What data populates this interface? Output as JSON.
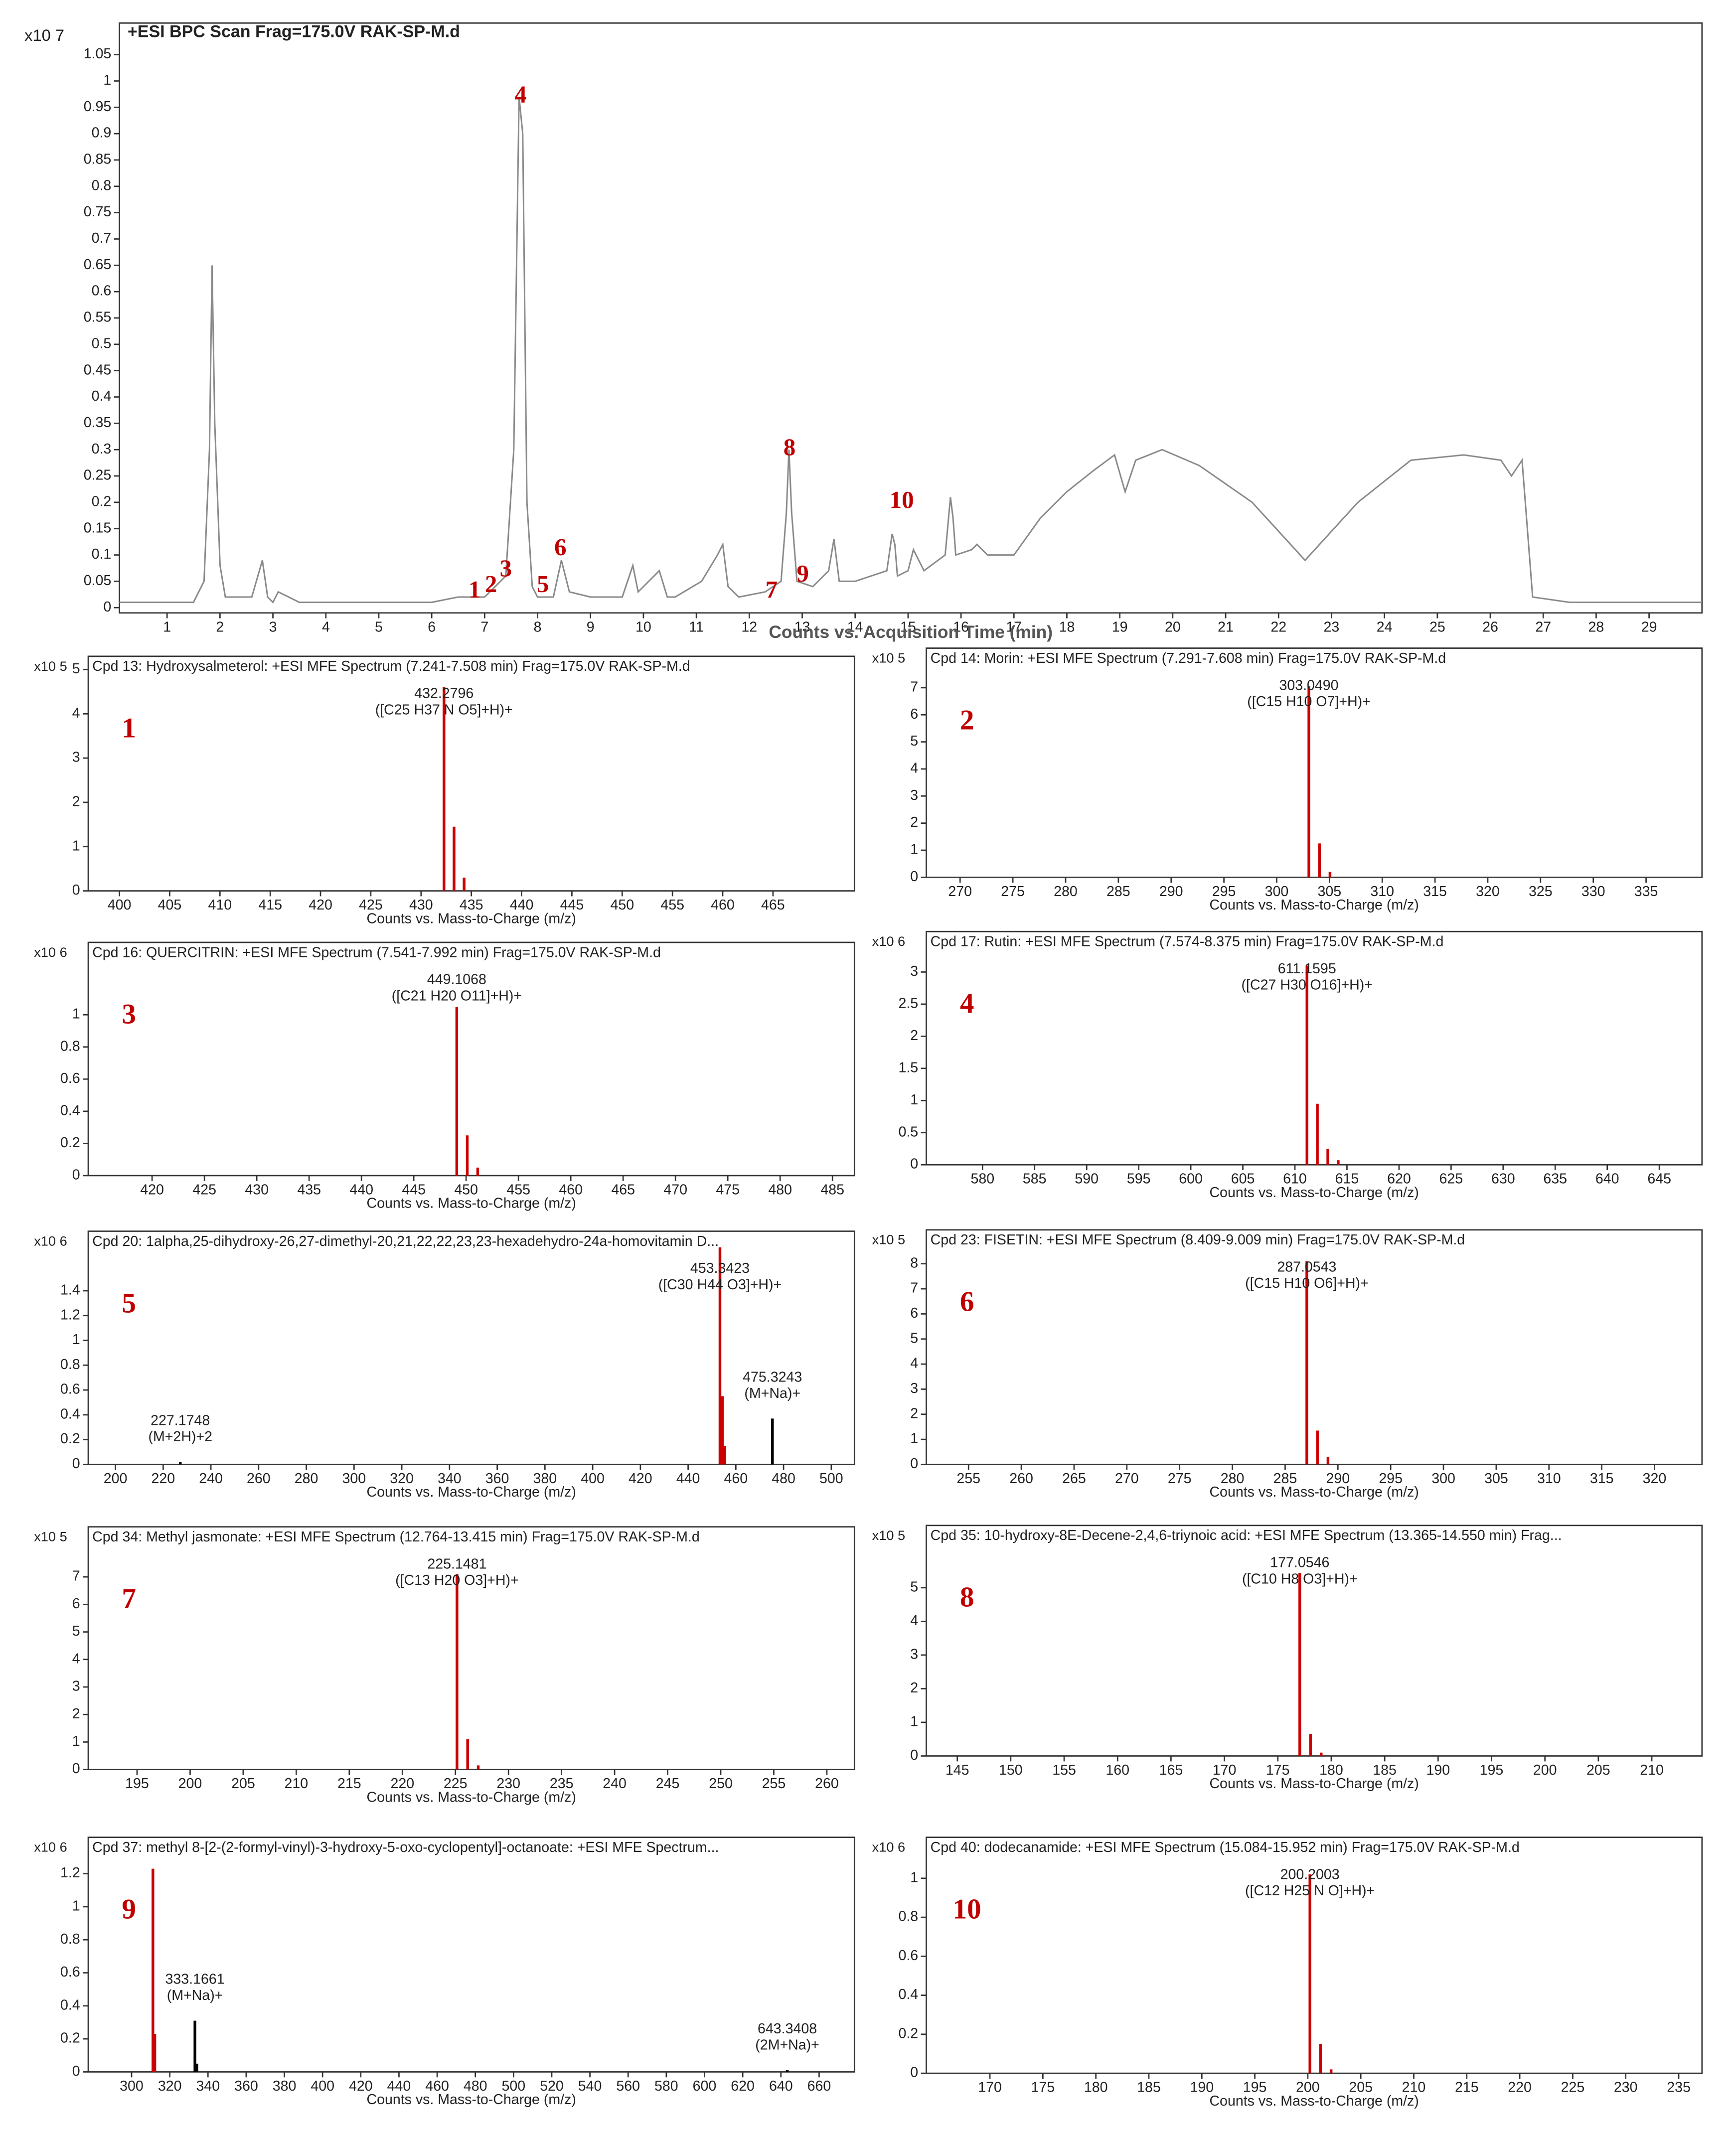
{
  "chart_data": [
    {
      "type": "line",
      "title": "+ESI BPC Scan Frag=175.0V RAK-SP-M.d",
      "y_multiplier": "x10 7",
      "xlabel": "Counts vs. Acquisition Time (min)",
      "color": "#8a8a8a",
      "x": [
        0.1,
        1.5,
        1.7,
        1.8,
        1.85,
        1.9,
        2.0,
        2.1,
        2.6,
        2.8,
        2.9,
        3.0,
        3.1,
        3.5,
        6.0,
        6.5,
        7.0,
        7.2,
        7.4,
        7.55,
        7.65,
        7.72,
        7.8,
        7.9,
        8.0,
        8.3,
        8.45,
        8.6,
        9.0,
        9.6,
        9.8,
        9.9,
        10.3,
        10.45,
        10.6,
        11.1,
        11.4,
        11.5,
        11.6,
        11.8,
        12.3,
        12.6,
        12.7,
        12.75,
        12.8,
        12.9,
        13.2,
        13.5,
        13.6,
        13.7,
        14.0,
        14.6,
        14.7,
        14.75,
        14.8,
        15.0,
        15.1,
        15.3,
        15.7,
        15.8,
        15.85,
        15.9,
        16.2,
        16.3,
        16.5,
        17.0,
        17.5,
        18.0,
        18.5,
        18.9,
        19.1,
        19.3,
        19.8,
        20.5,
        21.5,
        22.5,
        23.5,
        24.5,
        25.5,
        26.2,
        26.4,
        26.6,
        26.8,
        27.5,
        29.0,
        30.0
      ],
      "values": [
        0.01,
        0.01,
        0.05,
        0.3,
        0.65,
        0.35,
        0.08,
        0.02,
        0.02,
        0.09,
        0.02,
        0.01,
        0.03,
        0.01,
        0.01,
        0.02,
        0.02,
        0.04,
        0.06,
        0.3,
        0.97,
        0.9,
        0.2,
        0.04,
        0.02,
        0.02,
        0.09,
        0.03,
        0.02,
        0.02,
        0.08,
        0.03,
        0.07,
        0.02,
        0.02,
        0.05,
        0.1,
        0.12,
        0.04,
        0.02,
        0.03,
        0.05,
        0.18,
        0.3,
        0.18,
        0.05,
        0.04,
        0.07,
        0.13,
        0.05,
        0.05,
        0.07,
        0.14,
        0.12,
        0.06,
        0.07,
        0.11,
        0.07,
        0.1,
        0.21,
        0.17,
        0.1,
        0.11,
        0.12,
        0.1,
        0.1,
        0.17,
        0.22,
        0.26,
        0.29,
        0.22,
        0.28,
        0.3,
        0.27,
        0.2,
        0.09,
        0.2,
        0.28,
        0.29,
        0.28,
        0.25,
        0.28,
        0.02,
        0.01,
        0.01,
        0.01
      ],
      "xlim": [
        0.1,
        30
      ],
      "ylim": [
        -0.01,
        1.11
      ],
      "xticks": [
        1,
        2,
        3,
        4,
        5,
        6,
        7,
        8,
        9,
        10,
        11,
        12,
        13,
        14,
        15,
        16,
        17,
        18,
        19,
        20,
        21,
        22,
        23,
        24,
        25,
        26,
        27,
        28,
        29
      ],
      "yticks": [
        0,
        0.05,
        0.1,
        0.15,
        0.2,
        0.25,
        0.3,
        0.35,
        0.4,
        0.45,
        0.5,
        0.55,
        0.6,
        0.65,
        0.7,
        0.75,
        0.8,
        0.85,
        0.9,
        0.95,
        1,
        1.05
      ],
      "annotations": [
        {
          "text": "1",
          "x": 6.81,
          "y": 0.03
        },
        {
          "text": "2",
          "x": 7.12,
          "y": 0.04
        },
        {
          "text": "3",
          "x": 7.4,
          "y": 0.07
        },
        {
          "text": "4",
          "x": 7.68,
          "y": 0.97
        },
        {
          "text": "5",
          "x": 8.1,
          "y": 0.04
        },
        {
          "text": "6",
          "x": 8.43,
          "y": 0.11
        },
        {
          "text": "7",
          "x": 12.42,
          "y": 0.03
        },
        {
          "text": "8",
          "x": 12.76,
          "y": 0.3
        },
        {
          "text": "9",
          "x": 13.01,
          "y": 0.06
        },
        {
          "text": "10",
          "x": 14.88,
          "y": 0.2
        }
      ]
    },
    {
      "type": "stem",
      "tag": "1",
      "title": "Cpd 13: Hydroxysalmeterol: +ESI MFE Spectrum (7.241-7.508 min) Frag=175.0V RAK-SP-M.d",
      "y_multiplier": "x10 5",
      "xlabel": "Counts vs. Mass-to-Charge (m/z)",
      "x": [
        432.2796,
        433.28,
        434.28
      ],
      "values": [
        4.6,
        1.45,
        0.3
      ],
      "colors": [
        "#cc0000",
        "#cc0000",
        "#cc0000"
      ],
      "x_labels": [
        "432.2796",
        null,
        null
      ],
      "formula_labels": [
        "([C25 H37 N O5]+H)+",
        null,
        null
      ],
      "xlim": [
        396.9,
        473.1
      ],
      "ylim": [
        0,
        5.3
      ],
      "xticks": [
        400,
        405,
        410,
        415,
        420,
        425,
        430,
        435,
        440,
        445,
        450,
        455,
        460,
        465
      ],
      "yticks": [
        0,
        1,
        2,
        3,
        4,
        5
      ]
    },
    {
      "type": "stem",
      "tag": "2",
      "title": "Cpd 14: Morin: +ESI MFE Spectrum (7.291-7.608 min) Frag=175.0V RAK-SP-M.d",
      "y_multiplier": "x10 5",
      "xlabel": "Counts vs. Mass-to-Charge (m/z)",
      "x": [
        303.049,
        304.05,
        305.05
      ],
      "values": [
        7.05,
        1.25,
        0.2
      ],
      "colors": [
        "#cc0000",
        "#cc0000",
        "#cc0000"
      ],
      "x_labels": [
        "303.0490",
        null,
        null
      ],
      "formula_labels": [
        "([C15 H10 O7]+H)+",
        null,
        null
      ],
      "xlim": [
        266.8,
        340.3
      ],
      "ylim": [
        0,
        8.46
      ],
      "xticks": [
        270,
        275,
        280,
        285,
        290,
        295,
        300,
        305,
        310,
        315,
        320,
        325,
        330,
        335
      ],
      "yticks": [
        0,
        1,
        2,
        3,
        4,
        5,
        6,
        7
      ]
    },
    {
      "type": "stem",
      "tag": "3",
      "title": "Cpd 16: QUERCITRIN: +ESI MFE Spectrum (7.541-7.992 min) Frag=175.0V RAK-SP-M.d",
      "y_multiplier": "x10 6",
      "xlabel": "Counts vs. Mass-to-Charge (m/z)",
      "x": [
        449.1068,
        450.11,
        451.11
      ],
      "values": [
        1.05,
        0.25,
        0.05
      ],
      "colors": [
        "#cc0000",
        "#cc0000",
        "#cc0000"
      ],
      "x_labels": [
        "449.1068",
        null,
        null
      ],
      "formula_labels": [
        "([C21 H20 O11]+H)+",
        null,
        null
      ],
      "xlim": [
        413.9,
        487.1
      ],
      "ylim": [
        0,
        1.45
      ],
      "xticks": [
        420,
        425,
        430,
        435,
        440,
        445,
        450,
        455,
        460,
        465,
        470,
        475,
        480,
        485
      ],
      "yticks": [
        0,
        0.2,
        0.4,
        0.6,
        0.8,
        1
      ]
    },
    {
      "type": "stem",
      "tag": "4",
      "title": "Cpd 17: Rutin: +ESI MFE Spectrum (7.574-8.375 min) Frag=175.0V RAK-SP-M.d",
      "y_multiplier": "x10 6",
      "xlabel": "Counts vs. Mass-to-Charge (m/z)",
      "x": [
        611.1595,
        612.16,
        613.16,
        614.16
      ],
      "values": [
        3.1,
        0.95,
        0.25,
        0.07
      ],
      "colors": [
        "#cc0000",
        "#cc0000",
        "#cc0000",
        "#cc0000"
      ],
      "x_labels": [
        "611.1595",
        null,
        null,
        null
      ],
      "formula_labels": [
        "([C27 H30 O16]+H)+",
        null,
        null,
        null
      ],
      "xlim": [
        574.6,
        649.1
      ],
      "ylim": [
        0,
        3.63
      ],
      "xticks": [
        580,
        585,
        590,
        595,
        600,
        605,
        610,
        615,
        620,
        625,
        630,
        635,
        640,
        645
      ],
      "yticks": [
        0,
        0.5,
        1,
        1.5,
        2,
        2.5,
        3
      ]
    },
    {
      "type": "stem",
      "tag": "5",
      "title": "Cpd 20: 1alpha,25-dihydroxy-26,27-dimethyl-20,21,22,22,23,23-hexadehydro-24a-homovitamin D...",
      "y_multiplier": "x10 6",
      "xlabel": "Counts vs. Mass-to-Charge (m/z)",
      "x": [
        227.1748,
        453.3423,
        454.35,
        455.35,
        475.3243
      ],
      "values": [
        0.02,
        1.75,
        0.55,
        0.15,
        0.37
      ],
      "colors": [
        "#000000",
        "#cc0000",
        "#cc0000",
        "#cc0000",
        "#000000"
      ],
      "x_labels": [
        "227.1748",
        "453.3423",
        null,
        null,
        "475.3243"
      ],
      "formula_labels": [
        "(M+2H)+2",
        "([C30 H44 O3]+H)+",
        null,
        null,
        "(M+Na)+"
      ],
      "xlim": [
        188.6,
        509.7
      ],
      "ylim": [
        0,
        1.88
      ],
      "xticks": [
        200,
        220,
        240,
        260,
        280,
        300,
        320,
        340,
        360,
        380,
        400,
        420,
        440,
        460,
        480,
        500
      ],
      "yticks": [
        0,
        0.2,
        0.4,
        0.6,
        0.8,
        1,
        1.2,
        1.4
      ]
    },
    {
      "type": "stem",
      "tag": "6",
      "title": "Cpd 23: FISETIN: +ESI MFE Spectrum (8.409-9.009 min) Frag=175.0V RAK-SP-M.d",
      "y_multiplier": "x10 5",
      "xlabel": "Counts vs. Mass-to-Charge (m/z)",
      "x": [
        287.0543,
        288.06,
        289.06
      ],
      "values": [
        8.1,
        1.35,
        0.3
      ],
      "colors": [
        "#cc0000",
        "#cc0000",
        "#cc0000"
      ],
      "x_labels": [
        "287.0543",
        null,
        null
      ],
      "formula_labels": [
        "([C15 H10 O6]+H)+",
        null,
        null
      ],
      "xlim": [
        251,
        324.5
      ],
      "ylim": [
        0,
        9.35
      ],
      "xticks": [
        255,
        260,
        265,
        270,
        275,
        280,
        285,
        290,
        295,
        300,
        305,
        310,
        315,
        320
      ],
      "yticks": [
        0,
        1,
        2,
        3,
        4,
        5,
        6,
        7,
        8
      ]
    },
    {
      "type": "stem",
      "tag": "7",
      "title": "Cpd 34: Methyl jasmonate: +ESI MFE Spectrum (12.764-13.415 min) Frag=175.0V RAK-SP-M.d",
      "y_multiplier": "x10 5",
      "xlabel": "Counts vs. Mass-to-Charge (m/z)",
      "x": [
        225.1481,
        226.15,
        227.15
      ],
      "values": [
        7.1,
        1.1,
        0.15
      ],
      "colors": [
        "#cc0000",
        "#cc0000",
        "#cc0000"
      ],
      "x_labels": [
        "225.1481",
        null,
        null
      ],
      "formula_labels": [
        "([C13 H20 O3]+H)+",
        null,
        null
      ],
      "xlim": [
        190.4,
        262.6
      ],
      "ylim": [
        0,
        8.82
      ],
      "xticks": [
        195,
        200,
        205,
        210,
        215,
        220,
        225,
        230,
        235,
        240,
        245,
        250,
        255,
        260
      ],
      "yticks": [
        0,
        1,
        2,
        3,
        4,
        5,
        6,
        7
      ]
    },
    {
      "type": "stem",
      "tag": "8",
      "title": "Cpd 35: 10-hydroxy-8E-Decene-2,4,6-triynoic acid: +ESI MFE Spectrum (13.365-14.550 min) Frag...",
      "y_multiplier": "x10 5",
      "xlabel": "Counts vs. Mass-to-Charge (m/z)",
      "x": [
        177.0546,
        178.06,
        179.06
      ],
      "values": [
        5.44,
        0.65,
        0.1
      ],
      "colors": [
        "#cc0000",
        "#cc0000",
        "#cc0000"
      ],
      "x_labels": [
        "177.0546",
        null,
        null
      ],
      "formula_labels": [
        "([C10 H8 O3]+H)+",
        null,
        null
      ],
      "xlim": [
        142.1,
        214.7
      ],
      "ylim": [
        0,
        6.85
      ],
      "xticks": [
        145,
        150,
        155,
        160,
        165,
        170,
        175,
        180,
        185,
        190,
        195,
        200,
        205,
        210
      ],
      "yticks": [
        0,
        1,
        2,
        3,
        4,
        5
      ]
    },
    {
      "type": "stem",
      "tag": "9",
      "title": "Cpd 37: methyl 8-[2-(2-formyl-vinyl)-3-hydroxy-5-oxo-cyclopentyl]-octanoate: +ESI MFE Spectrum...",
      "y_multiplier": "x10 6",
      "xlabel": "Counts vs. Mass-to-Charge (m/z)",
      "x": [
        311.17,
        312.17,
        333.1661,
        334.17,
        643.3408
      ],
      "values": [
        1.23,
        0.23,
        0.31,
        0.05,
        0.01
      ],
      "colors": [
        "#cc0000",
        "#cc0000",
        "#000000",
        "#000000",
        "#000000"
      ],
      "x_labels": [
        null,
        null,
        "333.1661",
        null,
        "643.3408"
      ],
      "formula_labels": [
        null,
        null,
        "(M+Na)+",
        null,
        "(2M+Na)+"
      ],
      "xlim": [
        277.3,
        678.5
      ],
      "ylim": [
        0,
        1.42
      ],
      "xticks": [
        300,
        320,
        340,
        360,
        380,
        400,
        420,
        440,
        460,
        480,
        500,
        520,
        540,
        560,
        580,
        600,
        620,
        640,
        660
      ],
      "yticks": [
        0,
        0.2,
        0.4,
        0.6,
        0.8,
        1,
        1.2
      ]
    },
    {
      "type": "stem",
      "tag": "10",
      "title": "Cpd 40: dodecanamide: +ESI MFE Spectrum (15.084-15.952 min) Frag=175.0V RAK-SP-M.d",
      "y_multiplier": "x10 6",
      "xlabel": "Counts vs. Mass-to-Charge (m/z)",
      "x": [
        200.2003,
        201.2,
        202.2
      ],
      "values": [
        1.02,
        0.15,
        0.02
      ],
      "colors": [
        "#cc0000",
        "#cc0000",
        "#cc0000"
      ],
      "x_labels": [
        "200.2003",
        null,
        null
      ],
      "formula_labels": [
        "([C12 H25 N O]+H)+",
        null,
        null
      ],
      "xlim": [
        164,
        237.2
      ],
      "ylim": [
        0,
        1.21
      ],
      "xticks": [
        170,
        175,
        180,
        185,
        190,
        195,
        200,
        205,
        210,
        215,
        220,
        225,
        230,
        235
      ],
      "yticks": [
        0,
        0.2,
        0.4,
        0.6,
        0.8,
        1
      ]
    }
  ]
}
